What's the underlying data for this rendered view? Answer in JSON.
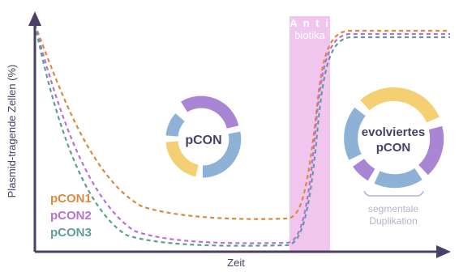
{
  "axes": {
    "ylabel": "Plasmid-tragende Zellen (%)",
    "xlabel": "Zeit"
  },
  "treatment": {
    "label_line1": "A n t i",
    "label_line2": "biotika",
    "color": "#f0c6ef"
  },
  "legend": [
    {
      "name": "pCON1",
      "color": "#d98a3c"
    },
    {
      "name": "pCON2",
      "color": "#b96fd6"
    },
    {
      "name": "pCON3",
      "color": "#5e9c98"
    }
  ],
  "plasmid_original": {
    "label": "pCON",
    "colors": {
      "purple": "#a886d4",
      "blue": "#8eb1d6",
      "yellow": "#f5d072"
    }
  },
  "plasmid_evolved": {
    "label_line1": "evolviertes",
    "label_line2": "pCON",
    "annotation_line1": "segmentale",
    "annotation_line2": "Duplikation"
  },
  "colors": {
    "axis": "#4a3f66",
    "plasmid_text": "#4a3f66",
    "annotation_text": "#b8b2cc"
  }
}
